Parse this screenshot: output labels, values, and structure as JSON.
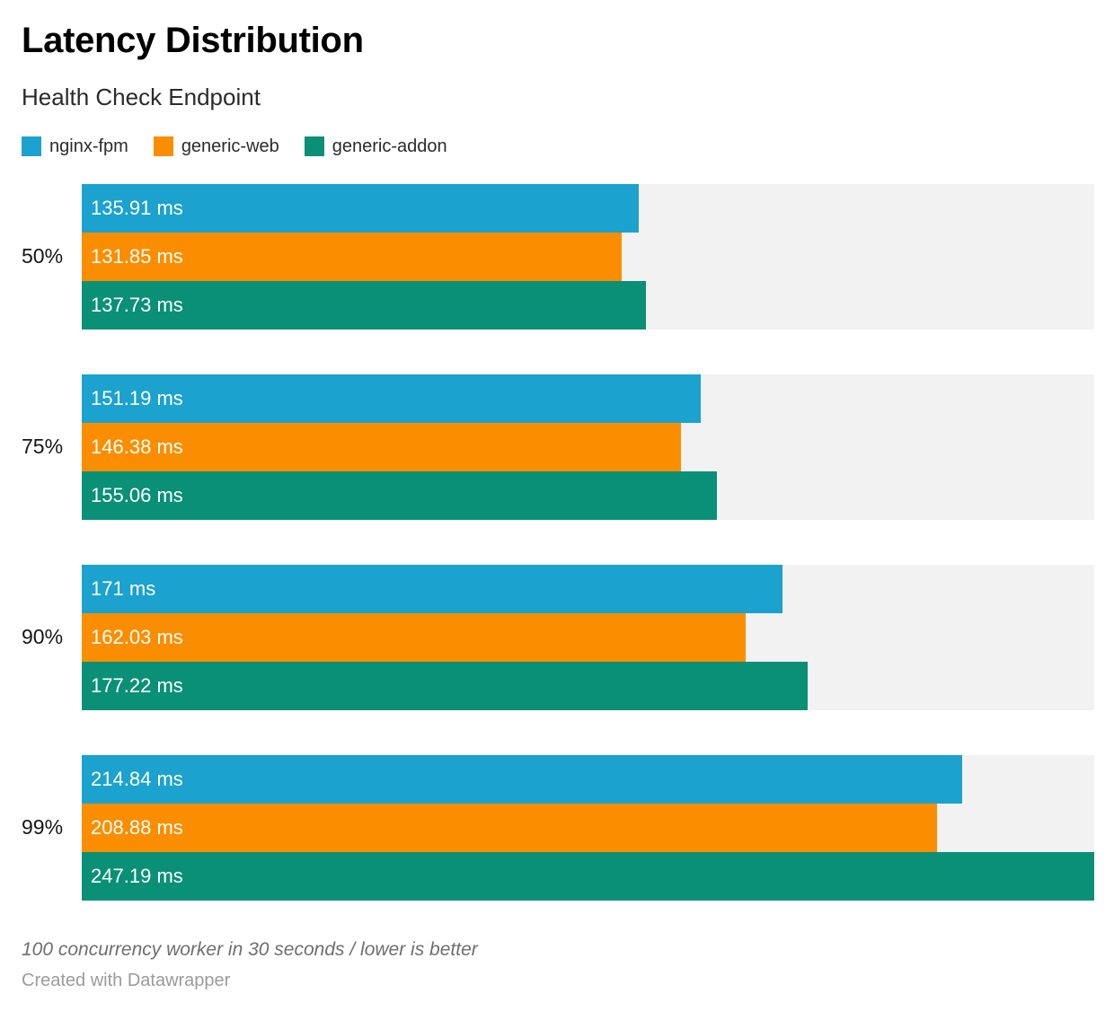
{
  "header": {
    "title": "Latency Distribution",
    "subtitle": "Health Check Endpoint"
  },
  "chart_data": {
    "type": "bar",
    "orientation": "horizontal",
    "title": "Latency Distribution",
    "subtitle": "Health Check Endpoint",
    "categories": [
      "50%",
      "75%",
      "90%",
      "99%"
    ],
    "series": [
      {
        "name": "nginx-fpm",
        "color": "#1CA2CE",
        "values": [
          135.91,
          151.19,
          171,
          214.84
        ],
        "value_labels": [
          "135.91 ms",
          "131.85 ms",
          "137.73 ms"
        ],
        "labels": [
          "135.91 ms",
          "151.19 ms",
          "171 ms",
          "214.84 ms"
        ]
      },
      {
        "name": "generic-web",
        "color": "#FA8E00",
        "values": [
          131.85,
          146.38,
          162.03,
          208.88
        ],
        "labels": [
          "131.85 ms",
          "146.38 ms",
          "162.03 ms",
          "208.88 ms"
        ]
      },
      {
        "name": "generic-addon",
        "color": "#0A9076",
        "values": [
          137.73,
          155.06,
          177.22,
          247.19
        ],
        "labels": [
          "137.73 ms",
          "155.06 ms",
          "177.22 ms",
          "247.19 ms"
        ]
      }
    ],
    "unit": "ms",
    "xlim": [
      0,
      247.19
    ],
    "grid": false,
    "legend_position": "top",
    "track_color": "#F2F2F2",
    "label_color_on_bar": "#FFFFFF"
  },
  "footer": {
    "note": "100 concurrency worker in 30 seconds / lower is better",
    "credit": "Created with Datawrapper"
  }
}
